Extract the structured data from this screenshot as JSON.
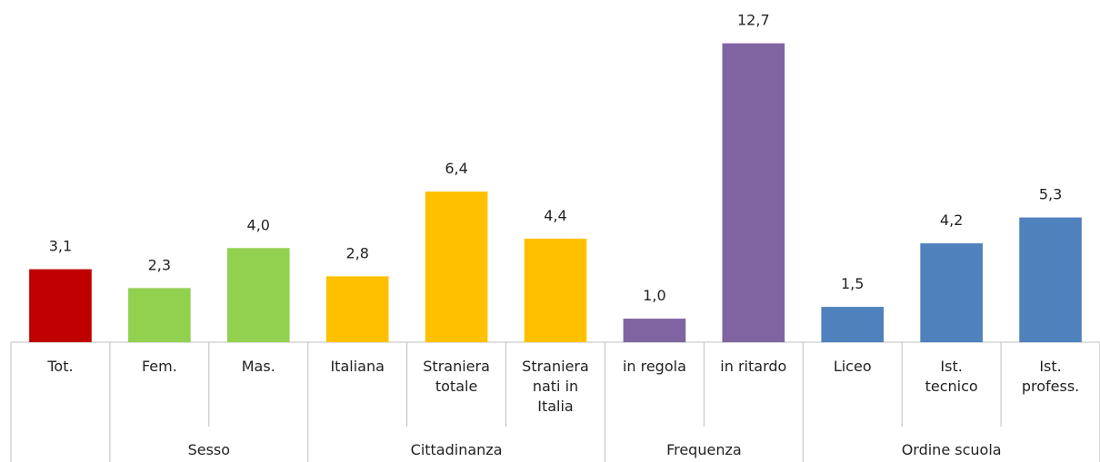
{
  "chart_data": {
    "type": "bar",
    "categories": [
      "Tot.",
      "Fem.",
      "Mas.",
      "Italiana",
      "Straniera\ntotale",
      "Straniera\nnati  in\nItalia",
      "in regola",
      "in ritardo",
      "Liceo",
      "Ist.\ntecnico",
      "Ist.\nprofess."
    ],
    "values": [
      3.1,
      2.3,
      4.0,
      2.8,
      6.4,
      4.4,
      1.0,
      12.7,
      1.5,
      4.2,
      5.3
    ],
    "value_labels": [
      "3,1",
      "2,3",
      "4,0",
      "2,8",
      "6,4",
      "4,4",
      "1,0",
      "12,7",
      "1,5",
      "4,2",
      "5,3"
    ],
    "colors": [
      "#c00000",
      "#92d050",
      "#92d050",
      "#ffc000",
      "#ffc000",
      "#ffc000",
      "#8064a2",
      "#8064a2",
      "#4f81bd",
      "#4f81bd",
      "#4f81bd"
    ],
    "groups": [
      {
        "name": null,
        "count": 1
      },
      {
        "name": "Sesso",
        "count": 2
      },
      {
        "name": "Cittadinanza",
        "count": 3
      },
      {
        "name": "Frequenza",
        "count": 2
      },
      {
        "name": "Ordine scuola",
        "count": 3
      }
    ],
    "ylim": [
      0,
      14
    ]
  }
}
